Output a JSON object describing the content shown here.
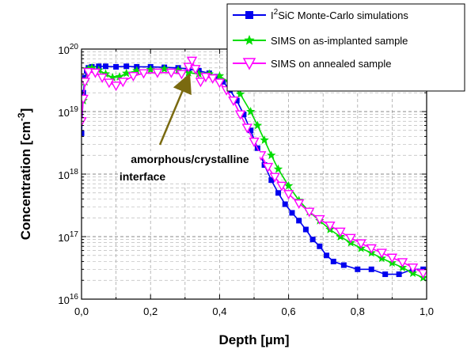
{
  "chart_data": {
    "type": "scatter",
    "title": "",
    "xlabel": "Depth [µm]",
    "ylabel_main": "Concentration [cm",
    "ylabel_sup": "-3",
    "ylabel_end": "]",
    "xlim": [
      0.0,
      1.0
    ],
    "ylim": [
      1e+16,
      1e+20
    ],
    "y_scale": "log",
    "grid": true,
    "legend_position": "top-right",
    "x_ticks": [
      "0,0",
      "0,2",
      "0,4",
      "0,6",
      "0,8",
      "1,0"
    ],
    "y_ticks": [
      {
        "base": "10",
        "exp": "16"
      },
      {
        "base": "10",
        "exp": "17"
      },
      {
        "base": "10",
        "exp": "18"
      },
      {
        "base": "10",
        "exp": "19"
      },
      {
        "base": "10",
        "exp": "20"
      }
    ],
    "annotation": {
      "line1": "amorphous/crystalline",
      "line2": "interface",
      "arrow_target": {
        "x": 0.31,
        "y": 4.2e+19
      }
    },
    "series": [
      {
        "name": "I²SiC Monte-Carlo simulations",
        "legend_sup": "2",
        "legend_prefix": "I",
        "legend_suffix": "SiC Monte-Carlo simulations",
        "color": "#0000ee",
        "marker": "square",
        "points": [
          [
            0.0,
            4.5e+18
          ],
          [
            0.005,
            2e+19
          ],
          [
            0.01,
            3.5e+19
          ],
          [
            0.015,
            4.5e+19
          ],
          [
            0.02,
            5e+19
          ],
          [
            0.03,
            5.2e+19
          ],
          [
            0.05,
            5.3e+19
          ],
          [
            0.07,
            5.3e+19
          ],
          [
            0.1,
            5.2e+19
          ],
          [
            0.13,
            5.3e+19
          ],
          [
            0.16,
            5.2e+19
          ],
          [
            0.2,
            5.2e+19
          ],
          [
            0.24,
            5.1e+19
          ],
          [
            0.28,
            5e+19
          ],
          [
            0.31,
            4.8e+19
          ],
          [
            0.34,
            4.5e+19
          ],
          [
            0.37,
            4.1e+19
          ],
          [
            0.39,
            3.6e+19
          ],
          [
            0.41,
            3e+19
          ],
          [
            0.43,
            2.2e+19
          ],
          [
            0.45,
            1.5e+19
          ],
          [
            0.47,
            9e+18
          ],
          [
            0.49,
            5e+18
          ],
          [
            0.51,
            2.6e+18
          ],
          [
            0.53,
            1.4e+18
          ],
          [
            0.55,
            8e+17
          ],
          [
            0.57,
            5e+17
          ],
          [
            0.59,
            3.3e+17
          ],
          [
            0.61,
            2.4e+17
          ],
          [
            0.63,
            1.8e+17
          ],
          [
            0.65,
            1.3e+17
          ],
          [
            0.67,
            9e+16
          ],
          [
            0.69,
            7e+16
          ],
          [
            0.71,
            5e+16
          ],
          [
            0.73,
            4e+16
          ],
          [
            0.76,
            3.5e+16
          ],
          [
            0.8,
            3e+16
          ],
          [
            0.84,
            3e+16
          ],
          [
            0.88,
            2.5e+16
          ],
          [
            0.92,
            2.5e+16
          ],
          [
            0.96,
            3e+16
          ],
          [
            0.99,
            3e+16
          ]
        ]
      },
      {
        "name": "SIMS on as-implanted sample",
        "color": "#00dd00",
        "marker": "star",
        "points": [
          [
            0.005,
            1.5e+19
          ],
          [
            0.01,
            3e+19
          ],
          [
            0.02,
            4.8e+19
          ],
          [
            0.03,
            5e+19
          ],
          [
            0.05,
            4.6e+19
          ],
          [
            0.07,
            4e+19
          ],
          [
            0.09,
            3.5e+19
          ],
          [
            0.11,
            3.6e+19
          ],
          [
            0.13,
            4.1e+19
          ],
          [
            0.16,
            4.5e+19
          ],
          [
            0.2,
            4.7e+19
          ],
          [
            0.24,
            4.8e+19
          ],
          [
            0.28,
            4.6e+19
          ],
          [
            0.31,
            4.2e+19
          ],
          [
            0.34,
            4e+19
          ],
          [
            0.37,
            4e+19
          ],
          [
            0.4,
            3.7e+19
          ],
          [
            0.43,
            2.9e+19
          ],
          [
            0.46,
            1.9e+19
          ],
          [
            0.49,
            1e+19
          ],
          [
            0.51,
            6e+18
          ],
          [
            0.53,
            3.5e+18
          ],
          [
            0.55,
            2e+18
          ],
          [
            0.57,
            1.2e+18
          ],
          [
            0.6,
            6.5e+17
          ],
          [
            0.63,
            3.8e+17
          ],
          [
            0.66,
            2.5e+17
          ],
          [
            0.69,
            1.8e+17
          ],
          [
            0.72,
            1.3e+17
          ],
          [
            0.75,
            1e+17
          ],
          [
            0.78,
            8e+16
          ],
          [
            0.81,
            6.5e+16
          ],
          [
            0.84,
            5.5e+16
          ],
          [
            0.87,
            4.5e+16
          ],
          [
            0.9,
            3.8e+16
          ],
          [
            0.93,
            3.2e+16
          ],
          [
            0.96,
            2.6e+16
          ],
          [
            0.99,
            2.2e+16
          ]
        ]
      },
      {
        "name": "SIMS on annealed sample",
        "color": "#ff00ff",
        "marker": "triangle-down",
        "points": [
          [
            0.0,
            7e+18
          ],
          [
            0.005,
            1.6e+19
          ],
          [
            0.01,
            3e+19
          ],
          [
            0.02,
            4.3e+19
          ],
          [
            0.04,
            4.2e+19
          ],
          [
            0.06,
            3.5e+19
          ],
          [
            0.08,
            2.9e+19
          ],
          [
            0.1,
            2.6e+19
          ],
          [
            0.12,
            3e+19
          ],
          [
            0.15,
            3.7e+19
          ],
          [
            0.18,
            4.1e+19
          ],
          [
            0.22,
            4.2e+19
          ],
          [
            0.26,
            4.2e+19
          ],
          [
            0.29,
            4e+19
          ],
          [
            0.31,
            5.2e+19
          ],
          [
            0.32,
            6.5e+19
          ],
          [
            0.33,
            4.8e+19
          ],
          [
            0.345,
            3e+19
          ],
          [
            0.36,
            3.6e+19
          ],
          [
            0.38,
            3.4e+19
          ],
          [
            0.4,
            2.9e+19
          ],
          [
            0.42,
            2.2e+19
          ],
          [
            0.44,
            1.5e+19
          ],
          [
            0.46,
            9e+18
          ],
          [
            0.48,
            5.5e+18
          ],
          [
            0.5,
            3.3e+18
          ],
          [
            0.52,
            2e+18
          ],
          [
            0.54,
            1.3e+18
          ],
          [
            0.56,
            9e+17
          ],
          [
            0.58,
            6.5e+17
          ],
          [
            0.6,
            4.8e+17
          ],
          [
            0.63,
            3.4e+17
          ],
          [
            0.66,
            2.5e+17
          ],
          [
            0.69,
            1.9e+17
          ],
          [
            0.72,
            1.5e+17
          ],
          [
            0.75,
            1.2e+17
          ],
          [
            0.78,
            9.5e+16
          ],
          [
            0.81,
            7.8e+16
          ],
          [
            0.84,
            6.5e+16
          ],
          [
            0.87,
            5.5e+16
          ],
          [
            0.9,
            4.6e+16
          ],
          [
            0.93,
            3.9e+16
          ],
          [
            0.96,
            3.2e+16
          ],
          [
            0.99,
            2.6e+16
          ]
        ]
      }
    ]
  }
}
